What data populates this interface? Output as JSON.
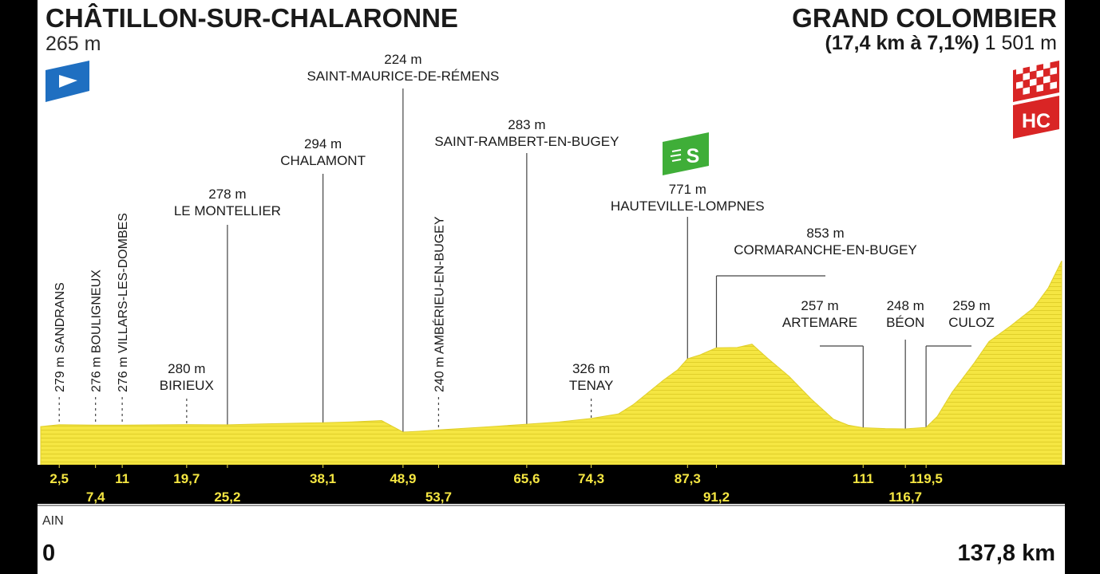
{
  "stage": {
    "start": {
      "name": "CHÂTILLON-SUR-CHALARONNE",
      "altitude": "265 m"
    },
    "finish": {
      "name": "GRAND COLOMBIER",
      "climb": "(17,4 km à 7,1%)",
      "altitude": "1 501 m",
      "category_badge": "HC"
    },
    "region": "AIN",
    "km_start": "0",
    "km_end": "137,8 km",
    "sprint_badge": "S"
  },
  "colors": {
    "profile_fill": "#f5e642",
    "profile_stripe": "#e0cf2a",
    "band": "#000000",
    "band_text": "#f5e642",
    "start_flag": "#1f6fc1",
    "sprint": "#3fae38",
    "finish_red": "#d92525"
  },
  "icons": {
    "start": "start-flag-icon",
    "sprint": "sprint-icon",
    "finish": "finish-checkered-icon",
    "category": "hc-category-icon"
  },
  "chart_data": {
    "type": "area",
    "x_unit": "km",
    "y_unit": "m",
    "xlim": [
      0,
      137.8
    ],
    "profile": {
      "x": [
        0,
        2.5,
        7.4,
        11,
        19.7,
        25.2,
        30,
        38.1,
        42,
        46,
        48.9,
        51,
        53.7,
        60,
        65.6,
        70,
        74.3,
        78,
        80,
        82,
        84,
        86,
        87.3,
        89,
        91.2,
        94,
        96,
        98,
        101,
        104,
        107,
        109,
        111,
        114,
        116.7,
        119.5,
        121,
        123,
        126,
        128,
        131,
        134,
        136,
        137.8
      ],
      "y": [
        265,
        279,
        276,
        276,
        280,
        278,
        285,
        294,
        300,
        310,
        224,
        230,
        240,
        262,
        283,
        300,
        326,
        360,
        430,
        520,
        610,
        690,
        771,
        800,
        853,
        855,
        880,
        780,
        640,
        470,
        320,
        275,
        257,
        250,
        248,
        259,
        340,
        520,
        740,
        900,
        1020,
        1150,
        1300,
        1501
      ]
    },
    "locations": [
      {
        "km": 2.5,
        "name": "SANDRANS",
        "alt": "279 m",
        "label": "279 m SANDRANS",
        "km_label": "2,5",
        "style": "vertical",
        "row": "top"
      },
      {
        "km": 7.4,
        "name": "BOULIGNEUX",
        "alt": "276 m",
        "label": "276 m BOULIGNEUX",
        "km_label": "7,4",
        "style": "vertical",
        "row": "bottom"
      },
      {
        "km": 11,
        "name": "VILLARS-LES-DOMBES",
        "alt": "276 m",
        "label": "276 m VILLARS-LES-DOMBES",
        "km_label": "11",
        "style": "vertical",
        "row": "top"
      },
      {
        "km": 19.7,
        "name": "BIRIEUX",
        "alt": "280 m",
        "km_label": "19,7",
        "style": "dashed",
        "row": "top"
      },
      {
        "km": 25.2,
        "name": "LE MONTELLIER",
        "alt": "278 m",
        "km_label": "25,2",
        "style": "solid",
        "row": "bottom"
      },
      {
        "km": 38.1,
        "name": "CHALAMONT",
        "alt": "294 m",
        "km_label": "38,1",
        "style": "solid",
        "row": "top"
      },
      {
        "km": 48.9,
        "name": "SAINT-MAURICE-DE-RÉMENS",
        "alt": "224 m",
        "km_label": "48,9",
        "style": "solid",
        "row": "top"
      },
      {
        "km": 53.7,
        "name": "AMBÉRIEU-EN-BUGEY",
        "alt": "240 m",
        "label": "240 m AMBÉRIEU-EN-BUGEY",
        "km_label": "53,7",
        "style": "vertical",
        "row": "bottom"
      },
      {
        "km": 65.6,
        "name": "SAINT-RAMBERT-EN-BUGEY",
        "alt": "283 m",
        "km_label": "65,6",
        "style": "solid",
        "row": "top"
      },
      {
        "km": 74.3,
        "name": "TENAY",
        "alt": "326 m",
        "km_label": "74,3",
        "style": "dashed",
        "row": "top"
      },
      {
        "km": 87.3,
        "name": "HAUTEVILLE-LOMPNES",
        "alt": "771 m",
        "km_label": "87,3",
        "style": "solid",
        "row": "top"
      },
      {
        "km": 91.2,
        "name": "CORMARANCHE-EN-BUGEY",
        "alt": "853 m",
        "km_label": "91,2",
        "style": "elbow",
        "row": "bottom"
      },
      {
        "km": 111,
        "name": "ARTEMARE",
        "alt": "257 m",
        "km_label": "111",
        "style": "elbow",
        "row": "top"
      },
      {
        "km": 116.7,
        "name": "BÉON",
        "alt": "248 m",
        "km_label": "116,7",
        "style": "solid",
        "row": "bottom"
      },
      {
        "km": 119.5,
        "name": "CULOZ",
        "alt": "259 m",
        "km_label": "119,5",
        "style": "elbow",
        "row": "top"
      }
    ]
  }
}
